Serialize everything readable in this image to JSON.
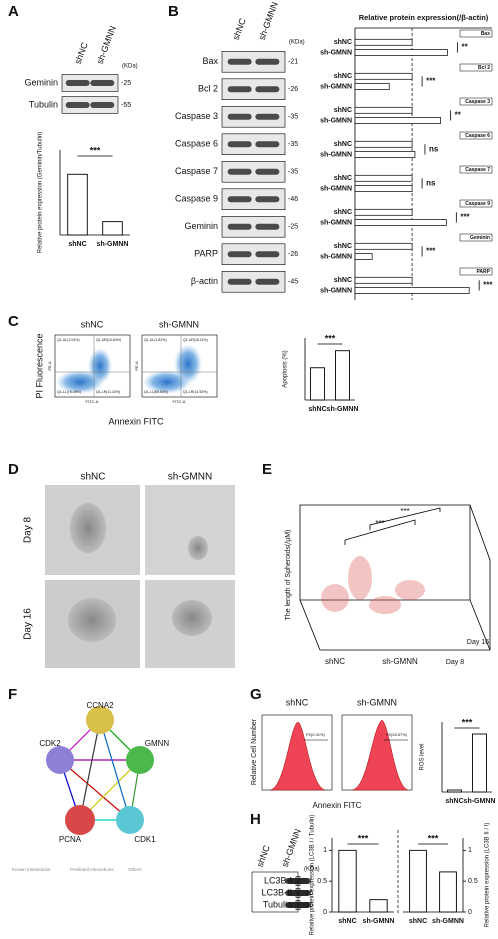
{
  "panel_labels": [
    "A",
    "B",
    "C",
    "D",
    "E",
    "F",
    "G",
    "H"
  ],
  "blot_A": {
    "lanes": [
      "shNC",
      "sh-GMNN"
    ],
    "unit": "(KDa)",
    "rows": [
      {
        "label": "Geminin",
        "kda": "-25"
      },
      {
        "label": "Tubulin",
        "kda": "-55"
      }
    ]
  },
  "blot_B": {
    "lanes": [
      "shNC",
      "sh-GMNN"
    ],
    "unit": "(KDa)",
    "rows": [
      {
        "label": "Bax",
        "kda": "-21"
      },
      {
        "label": "Bcl 2",
        "kda": "-26"
      },
      {
        "label": "Caspase 3",
        "kda": "-35"
      },
      {
        "label": "Caspase 6",
        "kda": "-35"
      },
      {
        "label": "Caspase 7",
        "kda": "-35"
      },
      {
        "label": "Caspase 9",
        "kda": "-46"
      },
      {
        "label": "Geminin",
        "kda": "-25"
      },
      {
        "label": "PARP",
        "kda": "-26"
      },
      {
        "label": "β-actin",
        "kda": "-45"
      }
    ]
  },
  "flow_C": {
    "samples": [
      {
        "title": "shNC",
        "quadrants": [
          "Q1-UL(2.04%)",
          "Q1-UR(10.64%)",
          "Q1-LL(76.49%)",
          "Q1-LR(11.43%)"
        ]
      },
      {
        "title": "sh-GMNN",
        "quadrants": [
          "Q1-UL(1.82%)",
          "Q1-UR(18.11%)",
          "Q1-LL(65.53%)",
          "Q1-LR(14.53%)"
        ]
      }
    ],
    "y_label": "PI Fluorescence",
    "x_label": "Annexin FITC",
    "axis_y": "PE-A",
    "axis_x": "FITC-A"
  },
  "spheroids_D": {
    "columns": [
      "shNC",
      "sh-GMNN"
    ],
    "rows": [
      "Day 8",
      "Day 16"
    ]
  },
  "plot_E": {
    "z_label": "The length of Spheroids(/μM)",
    "groups": [
      "shNC",
      "sh-GMNN"
    ],
    "days": [
      "Day 8",
      "Day 16"
    ],
    "annotation": "***"
  },
  "network_F": {
    "nodes": [
      "CCNA2",
      "CDK2",
      "GMNN",
      "PCNA",
      "CDK1"
    ],
    "legend": [
      "Known Interactions",
      "Predicted Interactions",
      "Others"
    ]
  },
  "flow_G": {
    "samples": [
      {
        "title": "shNC",
        "gate": "P2(0.31%)"
      },
      {
        "title": "sh-GMNN",
        "gate": "P2(28.57%)"
      }
    ],
    "y_label": "Relative Cell Number",
    "x_label": "Annexin FITC"
  },
  "blot_H": {
    "lanes": [
      "shNC",
      "sh-GMNN"
    ],
    "unit": "(KDa)",
    "rows": [
      {
        "label": "LC3B-I"
      },
      {
        "label": "LC3B-II",
        "kda": "-16"
      },
      {
        "label": "Tubulin",
        "kda": "-55"
      }
    ]
  },
  "chart_data": [
    {
      "type": "bar",
      "y_label": "Relative protein expression (Geminin/Tubulin)",
      "categories": [
        "shNC",
        "sh-GMNN"
      ],
      "values": [
        1,
        0.22
      ],
      "color": "#ffffff",
      "ylim": [
        0,
        1.4
      ],
      "annotation": "***"
    },
    {
      "type": "hbar",
      "title": "Relative protein expression(/β-actin)",
      "categories": [
        "shNC",
        "sh-GMNN"
      ],
      "reference": 1,
      "xlim": [
        0,
        2.4
      ],
      "color": "#ffffff",
      "groups": [
        {
          "name": "Bax",
          "values": [
            1,
            1.62
          ],
          "annotation": "**"
        },
        {
          "name": "Bcl 2",
          "values": [
            1,
            0.6
          ],
          "annotation": "***"
        },
        {
          "name": "Caspase 3",
          "values": [
            1,
            1.5
          ],
          "annotation": "**"
        },
        {
          "name": "Caspase 6",
          "values": [
            1,
            1.05
          ],
          "annotation": "ns"
        },
        {
          "name": "Caspase 7",
          "values": [
            1,
            1.0
          ],
          "annotation": "ns"
        },
        {
          "name": "Caspase 9",
          "values": [
            1,
            1.6
          ],
          "annotation": "***"
        },
        {
          "name": "Geminin",
          "values": [
            1,
            0.3
          ],
          "annotation": "***"
        },
        {
          "name": "PARP",
          "values": [
            1,
            2.0
          ],
          "annotation": "***"
        }
      ]
    },
    {
      "type": "bar",
      "y_label": "Apoptosis (%)",
      "categories": [
        "shNC",
        "sh-GMNN"
      ],
      "values": [
        20.8,
        31.8
      ],
      "color": "#ffffff",
      "ylim": [
        0,
        40
      ],
      "annotation": "***"
    },
    {
      "type": "bar",
      "y_label": "ROS level",
      "categories": [
        "shNC",
        "sh-GMNN"
      ],
      "values": [
        0.02,
        0.58
      ],
      "color": "#ffffff",
      "ylim": [
        0,
        0.7
      ],
      "annotation": "***"
    },
    {
      "type": "bar",
      "y_label": "Relative protein expression (LC3B I / Tubulin)",
      "categories": [
        "shNC",
        "sh-GMNN"
      ],
      "values": [
        1,
        0.2
      ],
      "color": "#ffffff",
      "ylim": [
        0,
        1.2
      ],
      "yticks": [
        0,
        0.5,
        1
      ],
      "annotation": "***"
    },
    {
      "type": "bar",
      "y_label": "Relative protein expression (LC3B II / I)",
      "categories": [
        "shNC",
        "sh-GMNN"
      ],
      "values": [
        1,
        0.65
      ],
      "color": "#ffffff",
      "ylim": [
        0,
        1.2
      ],
      "yticks": [
        0,
        0.5,
        1
      ],
      "annotation": "***",
      "y_side": "right"
    }
  ]
}
